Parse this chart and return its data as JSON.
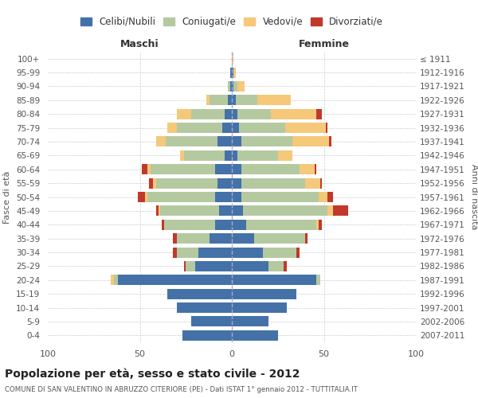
{
  "age_groups": [
    "0-4",
    "5-9",
    "10-14",
    "15-19",
    "20-24",
    "25-29",
    "30-34",
    "35-39",
    "40-44",
    "45-49",
    "50-54",
    "55-59",
    "60-64",
    "65-69",
    "70-74",
    "75-79",
    "80-84",
    "85-89",
    "90-94",
    "95-99",
    "100+"
  ],
  "birth_years": [
    "2007-2011",
    "2002-2006",
    "1997-2001",
    "1992-1996",
    "1987-1991",
    "1982-1986",
    "1977-1981",
    "1972-1976",
    "1967-1971",
    "1962-1966",
    "1957-1961",
    "1952-1956",
    "1947-1951",
    "1942-1946",
    "1937-1941",
    "1932-1936",
    "1927-1931",
    "1922-1926",
    "1917-1921",
    "1912-1916",
    "≤ 1911"
  ],
  "male": {
    "celibi": [
      27,
      22,
      30,
      35,
      62,
      20,
      18,
      12,
      9,
      7,
      9,
      8,
      9,
      4,
      8,
      5,
      4,
      2,
      1,
      1,
      0
    ],
    "coniugati": [
      0,
      0,
      0,
      0,
      2,
      5,
      12,
      18,
      28,
      32,
      37,
      33,
      35,
      22,
      28,
      25,
      18,
      10,
      1,
      0,
      0
    ],
    "vedovi": [
      0,
      0,
      0,
      0,
      2,
      0,
      0,
      0,
      0,
      1,
      1,
      2,
      2,
      2,
      5,
      5,
      8,
      2,
      0,
      0,
      0
    ],
    "divorziati": [
      0,
      0,
      0,
      0,
      0,
      1,
      2,
      2,
      1,
      1,
      4,
      2,
      3,
      0,
      0,
      0,
      0,
      0,
      0,
      0,
      0
    ]
  },
  "female": {
    "nubili": [
      25,
      20,
      30,
      35,
      46,
      20,
      17,
      12,
      8,
      6,
      5,
      5,
      5,
      3,
      5,
      4,
      3,
      2,
      1,
      1,
      0
    ],
    "coniugate": [
      0,
      0,
      0,
      0,
      2,
      8,
      18,
      28,
      38,
      46,
      42,
      35,
      32,
      22,
      28,
      25,
      18,
      12,
      2,
      0,
      0
    ],
    "vedove": [
      0,
      0,
      0,
      0,
      0,
      0,
      0,
      0,
      1,
      3,
      5,
      8,
      8,
      8,
      20,
      22,
      25,
      18,
      4,
      1,
      1
    ],
    "divorziate": [
      0,
      0,
      0,
      0,
      0,
      2,
      2,
      1,
      2,
      8,
      3,
      1,
      1,
      0,
      1,
      1,
      3,
      0,
      0,
      0,
      0
    ]
  },
  "colors": {
    "celibi": "#4472a8",
    "coniugati": "#b5c9a1",
    "vedovi": "#f5c87a",
    "divorziati": "#c0392b"
  },
  "xlim": 100,
  "title": "Popolazione per età, sesso e stato civile - 2012",
  "subtitle": "COMUNE DI SAN VALENTINO IN ABRUZZO CITERIORE (PE) - Dati ISTAT 1° gennaio 2012 - TUTTITALIA.IT",
  "ylabel_left": "Fasce di età",
  "ylabel_right": "Anni di nascita",
  "legend_labels": [
    "Celibi/Nubili",
    "Coniugati/e",
    "Vedovi/e",
    "Divorziati/e"
  ],
  "maschi_label": "Maschi",
  "femmine_label": "Femmine"
}
